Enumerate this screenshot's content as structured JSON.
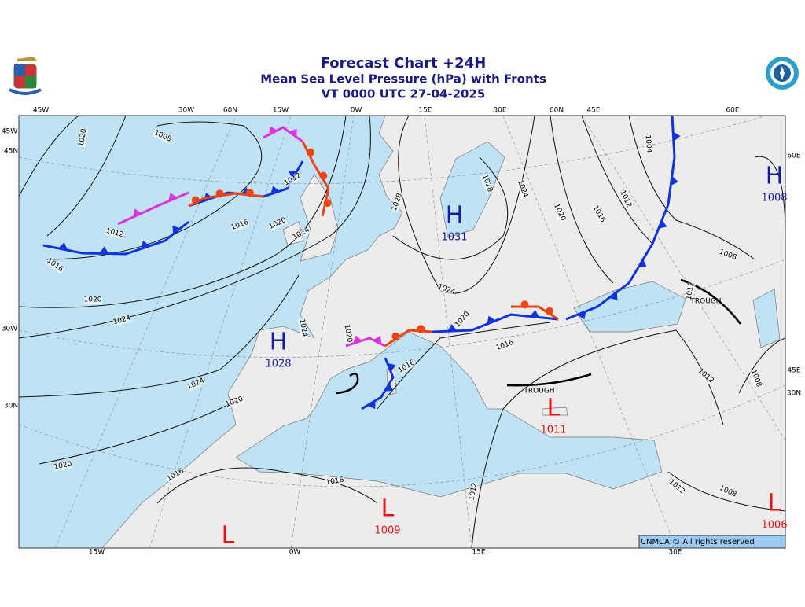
{
  "header": {
    "title": "Forecast Chart +24H",
    "subtitle": "Mean Sea Level Pressure (hPa) with Fronts",
    "valid_time": "VT 0000 UTC 27-04-2025"
  },
  "grid_labels": {
    "top": [
      "45W",
      "30W",
      "60N",
      "15W",
      "0W",
      "15E",
      "30E",
      "60N",
      "45E",
      "60E"
    ],
    "left": [
      "45W",
      "45N",
      "30W",
      "30N"
    ],
    "right": [
      "60E",
      "45E",
      "30N"
    ],
    "bottom": [
      "15W",
      "0W",
      "15E",
      "30E"
    ]
  },
  "pressure_centers": [
    {
      "symbol": "H",
      "value": 1031
    },
    {
      "symbol": "H",
      "value": 1028
    },
    {
      "symbol": "H",
      "value": 1008
    },
    {
      "symbol": "L",
      "value": 1011
    },
    {
      "symbol": "L",
      "value": 1009
    },
    {
      "symbol": "L"
    },
    {
      "symbol": "L",
      "value": 1006
    }
  ],
  "troughs": [
    "TROUGH",
    "TROUGH"
  ],
  "isobar_labels": [
    1020,
    1008,
    1012,
    1016,
    1016,
    1020,
    1024,
    1012,
    1020,
    1024,
    1024,
    1020,
    1020,
    1016,
    1016,
    1012,
    1028,
    1028,
    1024,
    1020,
    1016,
    1012,
    1004,
    1008,
    1012,
    1024,
    1020,
    1016,
    1016,
    1020,
    1024,
    1012,
    1008,
    1012,
    1008
  ],
  "copyright": "CNMCA © All rights reserved"
}
